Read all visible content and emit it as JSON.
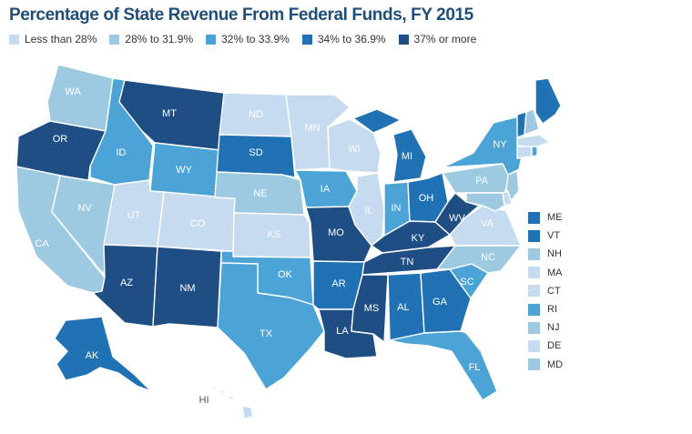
{
  "title": "Percentage of State Revenue From Federal Funds, FY 2015",
  "legend": [
    {
      "label": "Less than 28%",
      "color": "#c6dbef"
    },
    {
      "label": "28% to 31.9%",
      "color": "#9ecae1"
    },
    {
      "label": "32% to 33.9%",
      "color": "#4ba3d6"
    },
    {
      "label": "34% to 36.9%",
      "color": "#2171b5"
    },
    {
      "label": "37% or more",
      "color": "#1f4e85"
    }
  ],
  "states": [
    {
      "abbr": "WA",
      "bin": 1
    },
    {
      "abbr": "OR",
      "bin": 4
    },
    {
      "abbr": "CA",
      "bin": 1
    },
    {
      "abbr": "NV",
      "bin": 1
    },
    {
      "abbr": "ID",
      "bin": 2
    },
    {
      "abbr": "MT",
      "bin": 4
    },
    {
      "abbr": "WY",
      "bin": 2
    },
    {
      "abbr": "UT",
      "bin": 0
    },
    {
      "abbr": "CO",
      "bin": 0
    },
    {
      "abbr": "AZ",
      "bin": 4
    },
    {
      "abbr": "NM",
      "bin": 4
    },
    {
      "abbr": "ND",
      "bin": 0
    },
    {
      "abbr": "SD",
      "bin": 3
    },
    {
      "abbr": "NE",
      "bin": 1
    },
    {
      "abbr": "KS",
      "bin": 0
    },
    {
      "abbr": "OK",
      "bin": 2
    },
    {
      "abbr": "TX",
      "bin": 2
    },
    {
      "abbr": "MN",
      "bin": 0
    },
    {
      "abbr": "IA",
      "bin": 2
    },
    {
      "abbr": "MO",
      "bin": 4
    },
    {
      "abbr": "AR",
      "bin": 3
    },
    {
      "abbr": "LA",
      "bin": 4
    },
    {
      "abbr": "WI",
      "bin": 0
    },
    {
      "abbr": "IL",
      "bin": 0
    },
    {
      "abbr": "MI",
      "bin": 3
    },
    {
      "abbr": "IN",
      "bin": 2
    },
    {
      "abbr": "OH",
      "bin": 3
    },
    {
      "abbr": "KY",
      "bin": 4
    },
    {
      "abbr": "TN",
      "bin": 4
    },
    {
      "abbr": "MS",
      "bin": 4
    },
    {
      "abbr": "AL",
      "bin": 3
    },
    {
      "abbr": "GA",
      "bin": 3
    },
    {
      "abbr": "FL",
      "bin": 2
    },
    {
      "abbr": "SC",
      "bin": 2
    },
    {
      "abbr": "NC",
      "bin": 1
    },
    {
      "abbr": "VA",
      "bin": 0
    },
    {
      "abbr": "WV",
      "bin": 4
    },
    {
      "abbr": "PA",
      "bin": 1
    },
    {
      "abbr": "NY",
      "bin": 2
    },
    {
      "abbr": "ME",
      "bin": 3
    },
    {
      "abbr": "VT",
      "bin": 3
    },
    {
      "abbr": "NH",
      "bin": 1
    },
    {
      "abbr": "MA",
      "bin": 0
    },
    {
      "abbr": "CT",
      "bin": 0
    },
    {
      "abbr": "RI",
      "bin": 2
    },
    {
      "abbr": "NJ",
      "bin": 1
    },
    {
      "abbr": "DE",
      "bin": 0
    },
    {
      "abbr": "MD",
      "bin": 1
    },
    {
      "abbr": "AK",
      "bin": 3
    },
    {
      "abbr": "HI",
      "bin": 0
    }
  ],
  "side_list": [
    "ME",
    "VT",
    "NH",
    "MA",
    "CT",
    "RI",
    "NJ",
    "DE",
    "MD"
  ]
}
